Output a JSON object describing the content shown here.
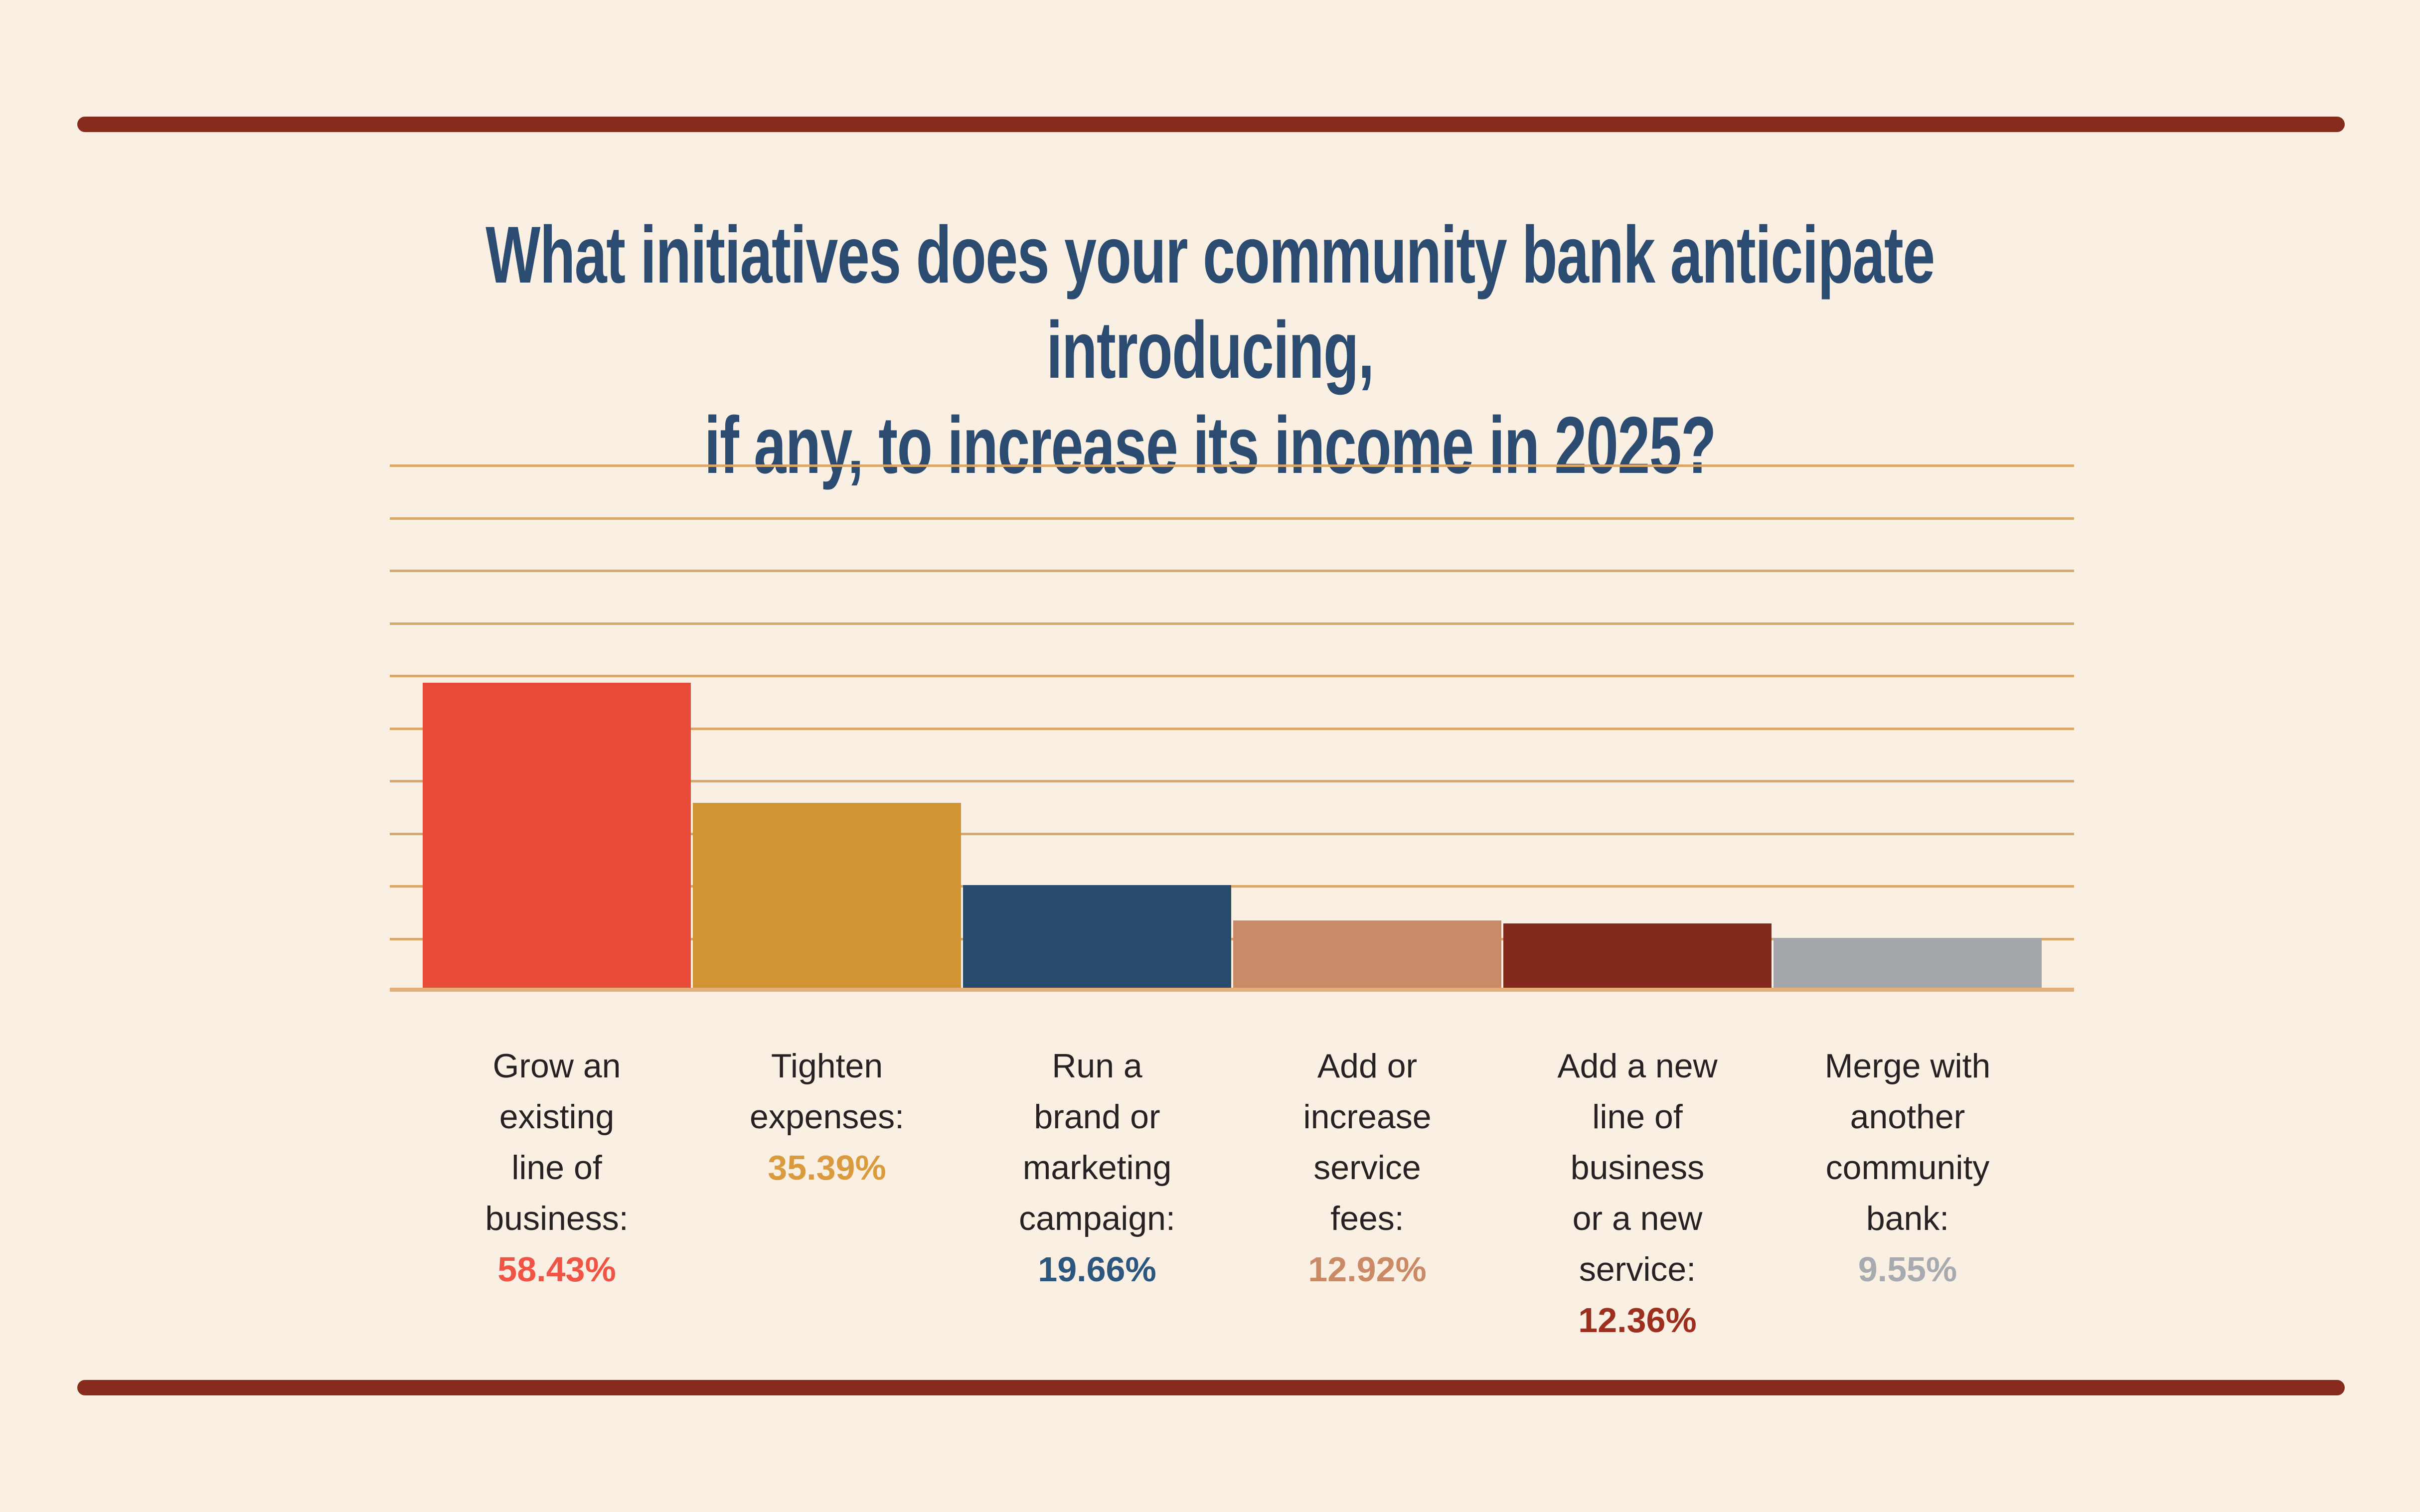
{
  "page": {
    "background_color": "#F9F0E3",
    "divider_color": "#872C1C"
  },
  "title": {
    "line1": "What initiatives does your community bank anticipate introducing,",
    "line2": "if any, to increase its income in 2025?",
    "color": "#2B4C70"
  },
  "chart_data": {
    "type": "bar",
    "title": "What initiatives does your community bank anticipate introducing, if any, to increase its income in 2025?",
    "xlabel": "",
    "ylabel": "",
    "unit": "percent",
    "ylim": [
      0,
      100
    ],
    "gridline_interval_pct": 10,
    "grid": "horizontal tan gridlines, no tick labels, no y-axis labels",
    "legend_position": "none",
    "categories": [
      "Grow an existing line of business",
      "Tighten expenses",
      "Run a brand or marketing campaign",
      "Add or increase service fees",
      "Add a new line of business or a new service",
      "Merge with another community bank"
    ],
    "values": [
      58.43,
      35.39,
      19.66,
      12.92,
      12.36,
      9.55
    ],
    "grid_color": "#D9A76C",
    "baseline_color": "#E3AE7B",
    "label_color": "#262223",
    "bars": [
      {
        "label_lines": "Grow an\nexisting\nline of\nbusiness:",
        "value": 58.43,
        "value_label": "58.43%",
        "bar_color": "#E94B3A",
        "value_color": "#EF5444"
      },
      {
        "label_lines": "Tighten\nexpenses:",
        "value": 35.39,
        "value_label": "35.39%",
        "bar_color": "#D29433",
        "value_color": "#D99B3E"
      },
      {
        "label_lines": "Run a\nbrand or\nmarketing\ncampaign:",
        "value": 19.66,
        "value_label": "19.66%",
        "bar_color": "#284A6B",
        "value_color": "#2D567E"
      },
      {
        "label_lines": "Add or\nincrease\nservice\nfees:",
        "value": 12.92,
        "value_label": "12.92%",
        "bar_color": "#C98A67",
        "value_color": "#CB8A66"
      },
      {
        "label_lines": "Add a new\nline of\nbusiness\nor a new\nservice:",
        "value": 12.36,
        "value_label": "12.36%",
        "bar_color": "#83291B",
        "value_color": "#9C2F1D"
      },
      {
        "label_lines": "Merge with\nanother\ncommunity\nbank:",
        "value": 9.55,
        "value_label": "9.55%",
        "bar_color": "#A3A6AA",
        "value_color": "#A7AAAF"
      }
    ]
  }
}
